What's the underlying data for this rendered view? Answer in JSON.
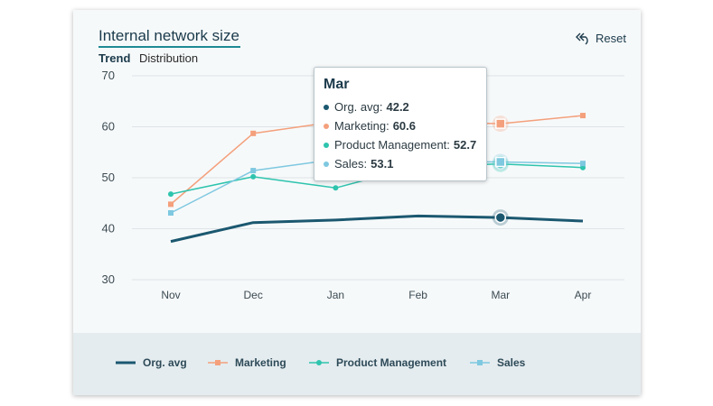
{
  "card": {
    "title": "Internal network size",
    "tabs": [
      "Trend",
      "Distribution"
    ],
    "reset_label": "Reset"
  },
  "tooltip": {
    "title": "Mar",
    "rows": [
      {
        "name": "Org. avg",
        "value": "42.2"
      },
      {
        "name": "Marketing",
        "value": "60.6"
      },
      {
        "name": "Product Management",
        "value": "52.7"
      },
      {
        "name": "Sales",
        "value": "53.1"
      }
    ]
  },
  "colors": {
    "org_avg": "#1b5870",
    "marketing": "#f4a07c",
    "product_management": "#2ec4ae",
    "sales": "#7ec8e0"
  },
  "chart_data": {
    "type": "line",
    "categories": [
      "Nov",
      "Dec",
      "Jan",
      "Feb",
      "Mar",
      "Apr"
    ],
    "ylim": [
      30,
      70
    ],
    "yticks": [
      30,
      40,
      50,
      60,
      70
    ],
    "grid": true,
    "legend_placement": "bottom",
    "highlighted_category": "Mar",
    "series": [
      {
        "name": "Org. avg",
        "marker": "none",
        "values": [
          37.5,
          41.2,
          41.7,
          42.5,
          42.2,
          41.5
        ]
      },
      {
        "name": "Marketing",
        "marker": "square",
        "values": [
          44.8,
          58.7,
          61.0,
          61.0,
          60.6,
          62.2
        ]
      },
      {
        "name": "Product Management",
        "marker": "circle",
        "values": [
          46.8,
          50.2,
          48.0,
          52.3,
          52.7,
          52.0
        ]
      },
      {
        "name": "Sales",
        "marker": "square",
        "values": [
          43.1,
          51.4,
          53.6,
          53.2,
          53.1,
          52.8
        ]
      }
    ]
  }
}
